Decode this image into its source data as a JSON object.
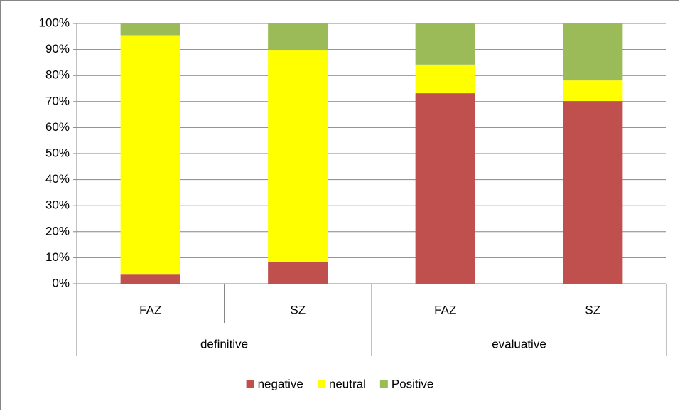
{
  "chart_data": {
    "type": "stacked_bar",
    "category_groups": [
      {
        "label": "definitive",
        "categories": [
          "FAZ",
          "SZ"
        ]
      },
      {
        "label": "evaluative",
        "categories": [
          "FAZ",
          "SZ"
        ]
      }
    ],
    "series": [
      {
        "name": "negative",
        "color": "#c0504d",
        "values": [
          3.5,
          8.2,
          73.2,
          70.2
        ]
      },
      {
        "name": "neutral",
        "color": "#ffff00",
        "values": [
          92,
          81.4,
          11,
          7.9
        ]
      },
      {
        "name": "Positive",
        "color": "#9bbb59",
        "values": [
          4.5,
          10.4,
          15.8,
          21.9
        ]
      }
    ],
    "ylim": [
      0,
      100
    ],
    "yticks": [
      {
        "value": 0,
        "label": "0%"
      },
      {
        "value": 10,
        "label": "10%"
      },
      {
        "value": 20,
        "label": "20%"
      },
      {
        "value": 30,
        "label": "30%"
      },
      {
        "value": 40,
        "label": "40%"
      },
      {
        "value": 50,
        "label": "50%"
      },
      {
        "value": 60,
        "label": "60%"
      },
      {
        "value": 70,
        "label": "70%"
      },
      {
        "value": 80,
        "label": "80%"
      },
      {
        "value": 90,
        "label": "90%"
      },
      {
        "value": 100,
        "label": "100%"
      }
    ],
    "grid": true,
    "legend": "bottom"
  }
}
